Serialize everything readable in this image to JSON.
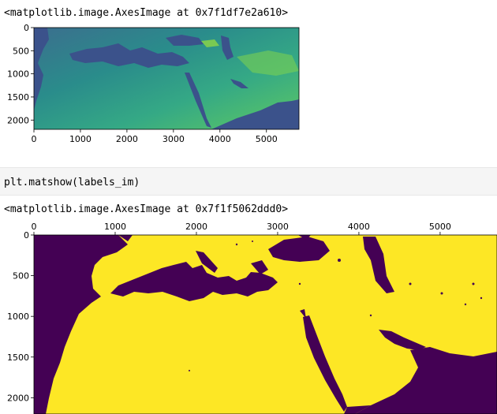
{
  "outputs": {
    "first_repr": "<matplotlib.image.AxesImage at 0x7f1df7e2a610>",
    "code_cell": "plt.matshow(labels_im)",
    "second_repr": "<matplotlib.image.AxesImage at 0x7f1f5062ddd0>"
  },
  "colors": {
    "viridis_dark": "#440154",
    "viridis_blue": "#3b528b",
    "viridis_teal": "#21918c",
    "viridis_green": "#5ec962",
    "viridis_yellow": "#fde725"
  },
  "chart_data": [
    {
      "type": "heatmap",
      "title": "",
      "xlabel": "",
      "ylabel": "",
      "x_ticks": [
        "0",
        "1000",
        "2000",
        "3000",
        "4000",
        "5000"
      ],
      "y_ticks": [
        "0",
        "500",
        "1000",
        "1500",
        "2000"
      ],
      "xlim": [
        0,
        5700
      ],
      "ylim": [
        2200,
        0
      ],
      "x_axis_position": "bottom",
      "colormap": "viridis"
    },
    {
      "type": "heatmap",
      "title": "",
      "xlabel": "",
      "ylabel": "",
      "x_ticks": [
        "0",
        "1000",
        "2000",
        "3000",
        "4000",
        "5000"
      ],
      "y_ticks": [
        "0",
        "500",
        "1000",
        "1500",
        "2000"
      ],
      "xlim": [
        0,
        5700
      ],
      "ylim": [
        2200,
        0
      ],
      "x_axis_position": "top",
      "colormap": "viridis"
    }
  ]
}
